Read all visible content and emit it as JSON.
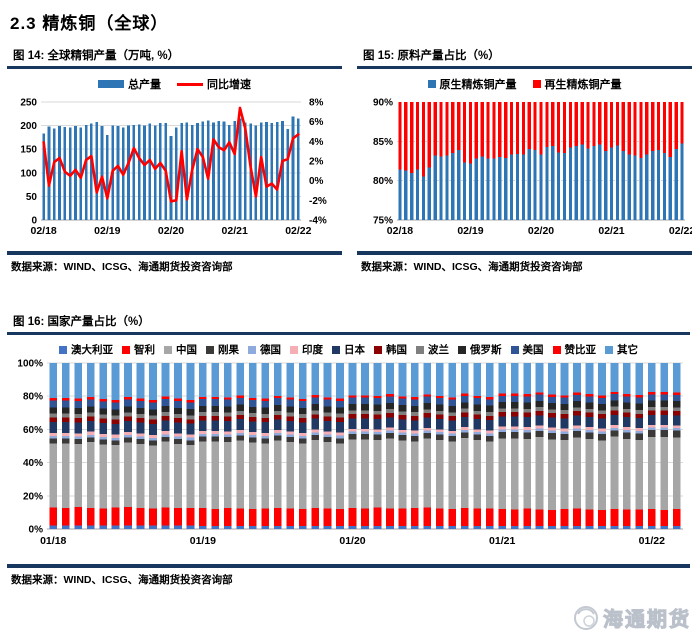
{
  "page": {
    "title": "2.3 精炼铜（全球）",
    "source_note": "数据来源：WIND、ICSG、海通期货投资咨询部",
    "watermark": "海通期货"
  },
  "colors": {
    "rule": "#17375E",
    "grid": "#D9D9D9",
    "axis": "#A6A6A6",
    "bar_blue": "#2E75B6",
    "line_red": "#FF0000"
  },
  "figure14": {
    "title": "图 14: 全球精铜产量（万吨, %）"
  },
  "figure15": {
    "title": "图 15: 原料产量占比（%）"
  },
  "figure16": {
    "title": "图 16: 国家产量占比（%）"
  },
  "chart_data": [
    {
      "id": "fig14",
      "type": "bar",
      "subtype": "bar-line-combo",
      "title": "全球精铜产量（万吨, %）",
      "y_left": {
        "min": 0,
        "max": 250,
        "ticks": [
          0,
          50,
          100,
          150,
          200,
          250
        ]
      },
      "y_right": {
        "min": -4,
        "max": 8,
        "ticks": [
          -4,
          -2,
          0,
          2,
          4,
          6,
          8
        ],
        "suffix": "%"
      },
      "x": {
        "n": 49,
        "tick_positions": [
          0,
          12,
          24,
          36,
          48
        ],
        "tick_labels": [
          "02/18",
          "02/19",
          "02/20",
          "02/21",
          "02/22"
        ]
      },
      "series": [
        {
          "name": "总产量",
          "type": "bar",
          "color": "#2E75B6",
          "axis": "left",
          "values": [
            183,
            198,
            194,
            199,
            197,
            196,
            199,
            196,
            201,
            204,
            208,
            199,
            180,
            200,
            199,
            196,
            200,
            201,
            202,
            200,
            204,
            200,
            206,
            206,
            178,
            196,
            205,
            207,
            201,
            206,
            209,
            211,
            207,
            210,
            209,
            201,
            210,
            215,
            207,
            204,
            200,
            207,
            208,
            206,
            208,
            210,
            193,
            219,
            215
          ]
        },
        {
          "name": "同比增速",
          "type": "line",
          "color": "#FF0000",
          "axis": "right",
          "values": [
            3.9,
            -0.5,
            1.9,
            2.3,
            0.9,
            0.5,
            1.1,
            0.3,
            2.1,
            2.5,
            -1.2,
            0.4,
            -1.8,
            1.0,
            1.5,
            0.6,
            1.8,
            3.3,
            2.3,
            1.6,
            2.1,
            1.2,
            1.8,
            1.0,
            -2.1,
            -2.0,
            3.0,
            -1.9,
            1.1,
            3.2,
            2.4,
            0.2,
            4.2,
            3.4,
            3.1,
            3.9,
            2.7,
            7.4,
            5.3,
            1.4,
            -1.6,
            2.4,
            -0.6,
            -0.3,
            -0.9,
            2.0,
            2.2,
            4.3,
            4.7
          ]
        }
      ]
    },
    {
      "id": "fig15",
      "type": "bar",
      "subtype": "stacked-bar-clipped",
      "title": "原料产量占比（%）",
      "y": {
        "min": 75,
        "max": 90,
        "ticks": [
          75,
          80,
          85,
          90
        ],
        "suffix": "%"
      },
      "x": {
        "n": 49,
        "tick_positions": [
          0,
          12,
          24,
          36,
          48
        ],
        "tick_labels": [
          "02/18",
          "02/19",
          "02/20",
          "02/21",
          "02/22"
        ]
      },
      "series": [
        {
          "name": "原生精炼铜产量",
          "color": "#2E75B6",
          "values": [
            81.4,
            81.3,
            81.0,
            81.4,
            80.5,
            81.7,
            83.2,
            83.1,
            83.2,
            83.5,
            83.9,
            82.3,
            82.2,
            82.8,
            83.1,
            82.8,
            82.8,
            83.0,
            82.9,
            83.3,
            83.4,
            83.3,
            84.0,
            83.9,
            83.3,
            84.3,
            84.4,
            83.6,
            83.5,
            84.2,
            84.4,
            84.6,
            84.1,
            84.4,
            84.6,
            83.8,
            84.2,
            84.5,
            83.8,
            83.3,
            83.2,
            82.9,
            83.3,
            83.8,
            83.9,
            83.5,
            83.0,
            84.0,
            84.7
          ]
        },
        {
          "name": "再生精炼铜产量",
          "color": "#FF0000",
          "values": [
            18.6,
            18.7,
            19.0,
            18.6,
            19.5,
            18.3,
            16.8,
            16.9,
            16.8,
            16.5,
            16.1,
            17.7,
            17.8,
            17.2,
            16.9,
            17.2,
            17.2,
            17.0,
            17.1,
            16.7,
            16.6,
            16.7,
            16.0,
            16.1,
            16.7,
            15.7,
            15.6,
            16.4,
            16.5,
            15.8,
            15.6,
            15.4,
            15.9,
            15.6,
            15.4,
            16.2,
            15.8,
            15.5,
            16.2,
            16.7,
            16.8,
            17.1,
            16.7,
            16.2,
            16.1,
            16.5,
            17.0,
            16.0,
            15.3
          ]
        }
      ]
    },
    {
      "id": "fig16",
      "type": "bar",
      "subtype": "stacked-bar-100",
      "title": "国家产量占比（%）",
      "y": {
        "min": 0,
        "max": 100,
        "ticks": [
          0,
          20,
          40,
          60,
          80,
          100
        ],
        "suffix": "%"
      },
      "x": {
        "n": 51,
        "tick_positions": [
          0,
          12,
          24,
          36,
          48
        ],
        "tick_labels": [
          "01/18",
          "01/19",
          "01/20",
          "01/21",
          "01/22"
        ]
      },
      "series": [
        {
          "name": "澳大利亚",
          "color": "#4472C4",
          "values": [
            2,
            2,
            2,
            2,
            2,
            2,
            2,
            2,
            2,
            2,
            2,
            2,
            1.9,
            1.9,
            1.9,
            1.9,
            1.9,
            1.9,
            1.9,
            1.9,
            1.9,
            1.9,
            1.9,
            1.9,
            1.9,
            1.9,
            1.9,
            1.9,
            1.9,
            1.9,
            1.9,
            1.9,
            1.9,
            1.9,
            1.9,
            1.9,
            1.8,
            1.8,
            1.8,
            1.8,
            1.8,
            1.8,
            1.8,
            1.8,
            1.8,
            1.8,
            1.8,
            1.8,
            1.8,
            1.8,
            1.8
          ]
        },
        {
          "name": "智利",
          "color": "#FF0000",
          "values": [
            11.1,
            10.6,
            11.3,
            10.8,
            10.5,
            11.0,
            11.2,
            10.8,
            10.4,
            11.1,
            10.8,
            10.6,
            10.7,
            10.2,
            10.9,
            10.4,
            10.1,
            10.6,
            10.8,
            10.4,
            10.0,
            10.7,
            10.4,
            10.2,
            10.9,
            10.4,
            11.1,
            10.6,
            10.3,
            10.8,
            11.0,
            10.6,
            10.2,
            10.9,
            10.6,
            10.4,
            10.3,
            9.8,
            10.5,
            10.0,
            9.7,
            10.2,
            10.4,
            10.0,
            9.6,
            10.3,
            10.0,
            9.8,
            10.1,
            9.6,
            10.3
          ]
        },
        {
          "name": "中国",
          "color": "#A6A6A6",
          "values": [
            38.5,
            39.0,
            38.0,
            39.5,
            38.5,
            37.5,
            39.0,
            38.5,
            38.0,
            39.5,
            38.5,
            38.0,
            40.0,
            40.5,
            39.5,
            41.0,
            40.0,
            39.0,
            40.5,
            40.0,
            39.5,
            41.0,
            40.0,
            39.5,
            41.0,
            41.5,
            40.5,
            42.0,
            41.0,
            40.0,
            41.5,
            41.0,
            40.5,
            42.0,
            41.0,
            40.5,
            42.5,
            43.0,
            42.0,
            43.5,
            42.5,
            41.5,
            43.0,
            42.5,
            42.0,
            43.5,
            42.5,
            42.0,
            43.5,
            44.0,
            43.0
          ]
        },
        {
          "name": "刚果",
          "color": "#3B3838",
          "values": [
            2.8,
            2.8,
            2.8,
            2.8,
            2.8,
            2.8,
            2.8,
            2.8,
            2.8,
            2.8,
            2.8,
            2.8,
            3.0,
            3.0,
            3.0,
            3.0,
            3.0,
            3.0,
            3.0,
            3.0,
            3.0,
            3.0,
            3.0,
            3.0,
            3.3,
            3.3,
            3.3,
            3.3,
            3.3,
            3.3,
            3.3,
            3.3,
            3.3,
            3.3,
            3.3,
            3.3,
            3.8,
            3.8,
            3.8,
            3.8,
            3.8,
            3.8,
            3.8,
            3.8,
            3.8,
            3.8,
            3.8,
            3.8,
            4.2,
            4.2,
            4.2
          ]
        },
        {
          "name": "德国",
          "color": "#8FAADC",
          "values": [
            1.6,
            1.6,
            1.6,
            1.6,
            1.6,
            1.6,
            1.6,
            1.6,
            1.6,
            1.6,
            1.6,
            1.6,
            1.6,
            1.6,
            1.6,
            1.6,
            1.6,
            1.6,
            1.6,
            1.6,
            1.6,
            1.6,
            1.6,
            1.6,
            1.5,
            1.5,
            1.5,
            1.5,
            1.5,
            1.5,
            1.5,
            1.5,
            1.5,
            1.5,
            1.5,
            1.5,
            1.5,
            1.5,
            1.5,
            1.5,
            1.5,
            1.5,
            1.5,
            1.5,
            1.5,
            1.5,
            1.5,
            1.5,
            1.4,
            1.4,
            1.4
          ]
        },
        {
          "name": "印度",
          "color": "#F5AFB4",
          "values": [
            1.9,
            1.9,
            1.9,
            1.9,
            1.9,
            1.9,
            1.9,
            1.9,
            1.9,
            1.9,
            1.9,
            1.9,
            1.8,
            1.8,
            1.8,
            1.8,
            1.8,
            1.8,
            1.8,
            1.8,
            1.8,
            1.8,
            1.8,
            1.8,
            1.7,
            1.7,
            1.7,
            1.7,
            1.7,
            1.7,
            1.7,
            1.7,
            1.7,
            1.7,
            1.7,
            1.7,
            1.8,
            1.8,
            1.8,
            1.8,
            1.8,
            1.8,
            1.8,
            1.8,
            1.8,
            1.8,
            1.8,
            1.8,
            1.8,
            1.8,
            1.8
          ]
        },
        {
          "name": "日本",
          "color": "#1F3864",
          "values": [
            6.6,
            6.6,
            6.6,
            6.6,
            6.6,
            6.6,
            6.6,
            6.6,
            6.6,
            6.6,
            6.6,
            6.6,
            6.5,
            6.5,
            6.5,
            6.5,
            6.5,
            6.5,
            6.5,
            6.5,
            6.5,
            6.5,
            6.5,
            6.5,
            6.3,
            6.3,
            6.3,
            6.3,
            6.3,
            6.3,
            6.3,
            6.3,
            6.3,
            6.3,
            6.3,
            6.3,
            6.1,
            6.1,
            6.1,
            6.1,
            6.1,
            6.1,
            6.1,
            6.1,
            6.1,
            6.1,
            6.1,
            6.1,
            6.0,
            6.0,
            6.0
          ]
        },
        {
          "name": "韩国",
          "color": "#8B0000",
          "values": [
            2.6,
            2.6,
            2.6,
            2.6,
            2.6,
            2.6,
            2.6,
            2.6,
            2.6,
            2.6,
            2.6,
            2.6,
            2.6,
            2.6,
            2.6,
            2.6,
            2.6,
            2.6,
            2.6,
            2.6,
            2.6,
            2.6,
            2.6,
            2.6,
            2.6,
            2.6,
            2.6,
            2.6,
            2.6,
            2.6,
            2.6,
            2.6,
            2.6,
            2.6,
            2.6,
            2.6,
            2.6,
            2.6,
            2.6,
            2.6,
            2.6,
            2.6,
            2.6,
            2.6,
            2.6,
            2.6,
            2.6,
            2.6,
            2.6,
            2.6,
            2.6
          ]
        },
        {
          "name": "波兰",
          "color": "#7F7F7F",
          "values": [
            2.4,
            2.4,
            2.4,
            2.4,
            2.4,
            2.4,
            2.4,
            2.4,
            2.4,
            2.4,
            2.4,
            2.4,
            2.4,
            2.4,
            2.4,
            2.4,
            2.4,
            2.4,
            2.4,
            2.4,
            2.4,
            2.4,
            2.4,
            2.4,
            2.3,
            2.3,
            2.3,
            2.3,
            2.3,
            2.3,
            2.3,
            2.3,
            2.3,
            2.3,
            2.3,
            2.3,
            2.3,
            2.3,
            2.3,
            2.3,
            2.3,
            2.3,
            2.3,
            2.3,
            2.3,
            2.3,
            2.3,
            2.3,
            2.2,
            2.2,
            2.2
          ]
        },
        {
          "name": "俄罗斯",
          "color": "#262626",
          "values": [
            3.7,
            3.7,
            3.7,
            3.7,
            3.7,
            3.7,
            3.7,
            3.7,
            3.7,
            3.7,
            3.7,
            3.7,
            3.7,
            3.7,
            3.7,
            3.7,
            3.7,
            3.7,
            3.7,
            3.7,
            3.7,
            3.7,
            3.7,
            3.7,
            3.8,
            3.8,
            3.8,
            3.8,
            3.8,
            3.8,
            3.8,
            3.8,
            3.8,
            3.8,
            3.8,
            3.8,
            3.8,
            3.8,
            3.8,
            3.8,
            3.8,
            3.8,
            3.8,
            3.8,
            3.8,
            3.8,
            3.8,
            3.8,
            3.8,
            3.8,
            3.8
          ]
        },
        {
          "name": "美国",
          "color": "#2F5597",
          "values": [
            4.1,
            4.1,
            4.1,
            4.1,
            4.1,
            4.1,
            4.1,
            4.1,
            4.1,
            4.1,
            4.1,
            4.1,
            4.0,
            4.0,
            4.0,
            4.0,
            4.0,
            4.0,
            4.0,
            4.0,
            4.0,
            4.0,
            4.0,
            4.0,
            3.8,
            3.8,
            3.8,
            3.8,
            3.8,
            3.8,
            3.8,
            3.8,
            3.8,
            3.8,
            3.8,
            3.8,
            3.7,
            3.7,
            3.7,
            3.7,
            3.7,
            3.7,
            3.7,
            3.7,
            3.7,
            3.7,
            3.7,
            3.7,
            3.6,
            3.6,
            3.6
          ]
        },
        {
          "name": "赞比亚",
          "color": "#FF0000",
          "values": [
            1.5,
            1.5,
            1.5,
            1.5,
            1.5,
            1.5,
            1.5,
            1.5,
            1.5,
            1.5,
            1.5,
            1.5,
            1.4,
            1.4,
            1.4,
            1.4,
            1.4,
            1.4,
            1.4,
            1.4,
            1.4,
            1.4,
            1.4,
            1.4,
            1.4,
            1.4,
            1.4,
            1.4,
            1.4,
            1.4,
            1.4,
            1.4,
            1.4,
            1.4,
            1.4,
            1.4,
            1.4,
            1.4,
            1.4,
            1.4,
            1.4,
            1.4,
            1.4,
            1.4,
            1.4,
            1.4,
            1.4,
            1.4,
            1.4,
            1.4,
            1.4
          ]
        },
        {
          "name": "其它",
          "color": "#5B9BD5",
          "values": [
            21.2,
            21.2,
            21.5,
            20.5,
            21.8,
            22.3,
            20.6,
            21.5,
            22.4,
            20.2,
            21.5,
            22.2,
            20.4,
            20.4,
            20.7,
            19.7,
            21.0,
            21.5,
            19.8,
            20.7,
            21.6,
            19.4,
            20.7,
            21.4,
            19.5,
            19.5,
            19.8,
            18.8,
            20.1,
            20.6,
            18.9,
            19.8,
            20.7,
            18.5,
            19.8,
            20.5,
            18.4,
            18.4,
            18.7,
            17.7,
            19.0,
            19.5,
            17.8,
            18.7,
            19.6,
            17.4,
            18.7,
            19.4,
            17.6,
            17.6,
            17.9
          ]
        }
      ]
    }
  ]
}
